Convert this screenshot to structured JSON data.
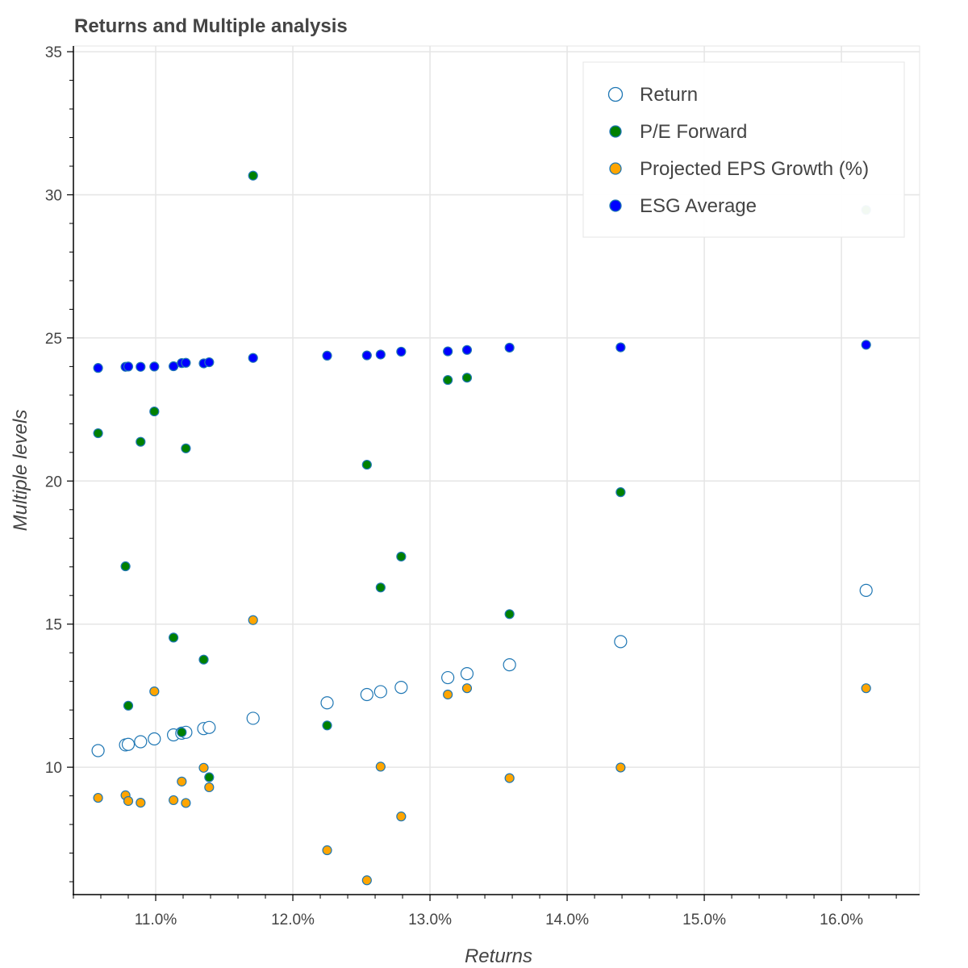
{
  "chart_data": {
    "type": "scatter",
    "title": "Returns and Multiple analysis",
    "xlabel": "Returns",
    "ylabel": "Multiple levels",
    "xlim": [
      10.4,
      16.57
    ],
    "ylim": [
      5.55,
      35.2
    ],
    "x_ticks": [
      11.0,
      12.0,
      13.0,
      14.0,
      15.0,
      16.0
    ],
    "x_tick_labels": [
      "11.0%",
      "12.0%",
      "13.0%",
      "14.0%",
      "15.0%",
      "16.0%"
    ],
    "y_ticks": [
      10,
      15,
      20,
      25,
      30,
      35
    ],
    "y_tick_labels": [
      "10",
      "15",
      "20",
      "25",
      "30",
      "35"
    ],
    "grid": true,
    "legend_position": "top-right",
    "x": [
      10.58,
      10.78,
      10.8,
      10.89,
      10.99,
      11.13,
      11.19,
      11.22,
      11.35,
      11.39,
      11.71,
      12.25,
      12.54,
      12.64,
      12.79,
      13.13,
      13.27,
      13.58,
      14.39,
      16.18
    ],
    "series": [
      {
        "name": "Return",
        "style": "hollow",
        "fill": "#ffffff",
        "stroke": "#1f77b4",
        "values": [
          10.58,
          10.78,
          10.8,
          10.89,
          10.99,
          11.13,
          11.19,
          11.22,
          11.35,
          11.39,
          11.71,
          12.25,
          12.54,
          12.64,
          12.79,
          13.13,
          13.27,
          13.58,
          14.39,
          16.18
        ]
      },
      {
        "name": "P/E Forward",
        "style": "filled",
        "fill": "#008000",
        "stroke": "#1f77b4",
        "values": [
          21.67,
          17.02,
          12.15,
          21.37,
          22.43,
          14.53,
          11.22,
          21.14,
          13.76,
          9.65,
          30.67,
          11.46,
          20.57,
          16.28,
          17.36,
          23.53,
          23.61,
          15.35,
          19.61,
          29.47
        ]
      },
      {
        "name": "Projected EPS Growth (%)",
        "style": "filled",
        "fill": "#ffa500",
        "stroke": "#1f77b4",
        "values": [
          8.93,
          9.02,
          8.82,
          8.76,
          12.65,
          8.85,
          9.5,
          8.75,
          9.98,
          9.3,
          15.14,
          7.1,
          6.05,
          10.02,
          8.28,
          12.54,
          12.76,
          9.62,
          9.99,
          12.76
        ]
      },
      {
        "name": "ESG Average",
        "style": "filled",
        "fill": "#0000ff",
        "stroke": "#1f77b4",
        "values": [
          23.95,
          23.99,
          24.0,
          23.99,
          24.0,
          24.01,
          24.12,
          24.13,
          24.11,
          24.15,
          24.3,
          24.38,
          24.39,
          24.42,
          24.52,
          24.53,
          24.58,
          24.66,
          24.67,
          24.76
        ]
      }
    ]
  }
}
